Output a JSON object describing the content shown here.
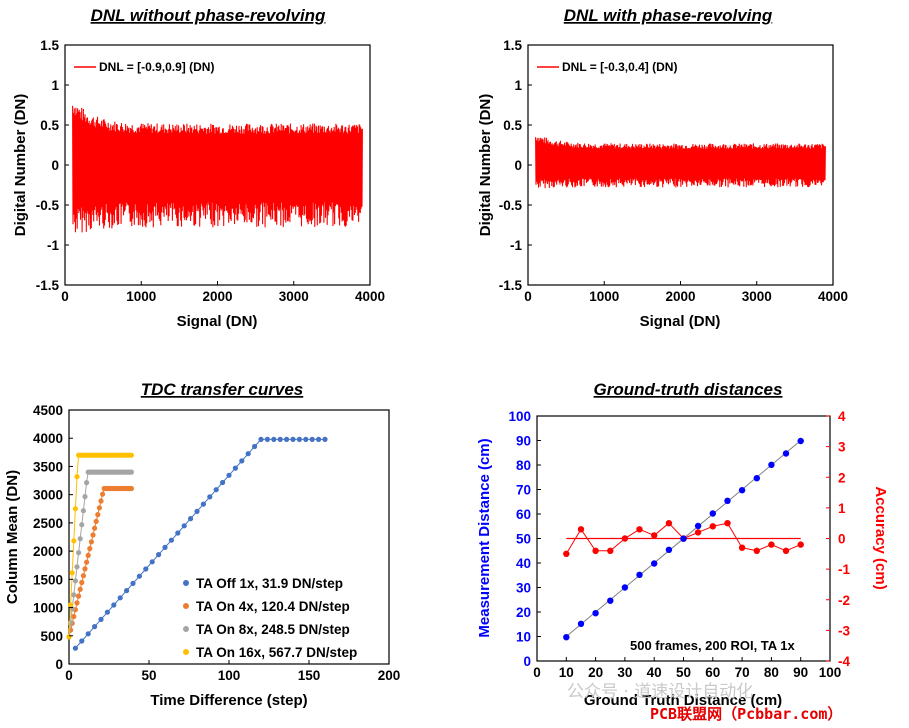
{
  "chart_data": [
    {
      "id": "dnl_without",
      "type": "line",
      "title": "DNL without phase-revolving",
      "xlabel": "Signal (DN)",
      "ylabel": "Digital Number (DN)",
      "xlim": [
        0,
        4000
      ],
      "ylim": [
        -1.5,
        1.5
      ],
      "xticks": [
        "0",
        "1000",
        "2000",
        "3000",
        "4000"
      ],
      "yticks": [
        "1.5",
        "1",
        "0.5",
        "0",
        "-0.5",
        "-1",
        "-1.5"
      ],
      "legend": "DNL = [-0.9,0.9] (DN)",
      "color": "#ff0000",
      "series": [
        {
          "name": "DNL",
          "x_start": 100,
          "x_end": 3900,
          "peak_high": 0.85,
          "peak_low": -0.9,
          "steady_high": 0.52,
          "steady_low": -0.78
        }
      ]
    },
    {
      "id": "dnl_with",
      "type": "line",
      "title": "DNL with phase-revolving",
      "xlabel": "Signal (DN)",
      "ylabel": "Digital Number (DN)",
      "xlim": [
        0,
        4000
      ],
      "ylim": [
        -1.5,
        1.5
      ],
      "xticks": [
        "0",
        "1000",
        "2000",
        "3000",
        "4000"
      ],
      "yticks": [
        "1.5",
        "1",
        "0.5",
        "0",
        "-0.5",
        "-1",
        "-1.5"
      ],
      "legend": "DNL = [-0.3,0.4] (DN)",
      "color": "#ff0000",
      "series": [
        {
          "name": "DNL",
          "x_start": 100,
          "x_end": 3900,
          "peak_high": 0.4,
          "peak_low": -0.3,
          "steady_high": 0.27,
          "steady_low": -0.28
        }
      ]
    },
    {
      "id": "tdc",
      "type": "scatter",
      "title": "TDC transfer curves",
      "xlabel": "Time Difference (step)",
      "ylabel": "Column Mean (DN)",
      "xlim": [
        0,
        200
      ],
      "ylim": [
        0,
        4500
      ],
      "xticks": [
        "0",
        "50",
        "100",
        "150",
        "200"
      ],
      "yticks": [
        "4500",
        "4000",
        "3500",
        "3000",
        "2500",
        "2000",
        "1500",
        "1000",
        "500",
        "0"
      ],
      "series": [
        {
          "name": "TA Off 1x, 31.9 DN/step",
          "color": "#4472c4",
          "x_start": 4,
          "x_step": 4,
          "count": 40,
          "y_start": 280,
          "slope": 31.9,
          "sat": 3980
        },
        {
          "name": "TA On 4x, 120.4 DN/step",
          "color": "#ed7d31",
          "x_start": 0,
          "x_step": 1,
          "count": 40,
          "y_start": 480,
          "slope": 120.4,
          "sat": 3110
        },
        {
          "name": "TA On 8x, 248.5 DN/step",
          "color": "#a5a5a5",
          "x_start": 0,
          "x_step": 1,
          "count": 40,
          "y_start": 480,
          "slope": 248.5,
          "sat": 3400
        },
        {
          "name": "TA On 16x, 567.7 DN/step",
          "color": "#ffc000",
          "x_start": 0,
          "x_step": 1,
          "count": 40,
          "y_start": 480,
          "slope": 567.7,
          "sat": 3700
        }
      ]
    },
    {
      "id": "groundtruth",
      "type": "scatter",
      "title": "Ground-truth distances",
      "xlabel": "Ground Truth Distance (cm)",
      "ylabel": "Measurement Distance (cm)",
      "y2label": "Accuracy (cm)",
      "xlim": [
        0,
        100
      ],
      "ylim": [
        0,
        100
      ],
      "y2lim": [
        -4,
        4
      ],
      "xticks": [
        "0",
        "10",
        "20",
        "30",
        "40",
        "50",
        "60",
        "70",
        "80",
        "90",
        "100"
      ],
      "yticks": [
        "100",
        "90",
        "80",
        "70",
        "60",
        "50",
        "40",
        "30",
        "20",
        "10",
        "0"
      ],
      "y2ticks": [
        "4",
        "3",
        "2",
        "1",
        "0",
        "-1",
        "-2",
        "-3",
        "-4"
      ],
      "annotation": "500 frames, 200 ROI, TA 1x",
      "x": [
        10,
        15,
        20,
        25,
        30,
        35,
        40,
        45,
        50,
        55,
        60,
        65,
        70,
        75,
        80,
        85,
        90
      ],
      "series": [
        {
          "name": "Measurement Distance",
          "axis": "left",
          "color": "#0000ff",
          "values": [
            9.7,
            15.2,
            19.5,
            24.6,
            30.0,
            35.2,
            39.8,
            45.4,
            49.9,
            55.1,
            60.2,
            65.4,
            69.7,
            74.6,
            80.1,
            84.7,
            89.8
          ]
        },
        {
          "name": "Accuracy",
          "axis": "right",
          "color": "#ff0000",
          "values": [
            -0.5,
            0.3,
            -0.4,
            -0.4,
            0.0,
            0.3,
            0.1,
            0.5,
            0.0,
            0.2,
            0.4,
            0.5,
            -0.3,
            -0.4,
            -0.2,
            -0.4,
            -0.2
          ]
        }
      ]
    }
  ],
  "watermark": {
    "text": "公众号 · 道速设计自动化",
    "site": "PCB联盟网（Pcbbar.com）"
  }
}
